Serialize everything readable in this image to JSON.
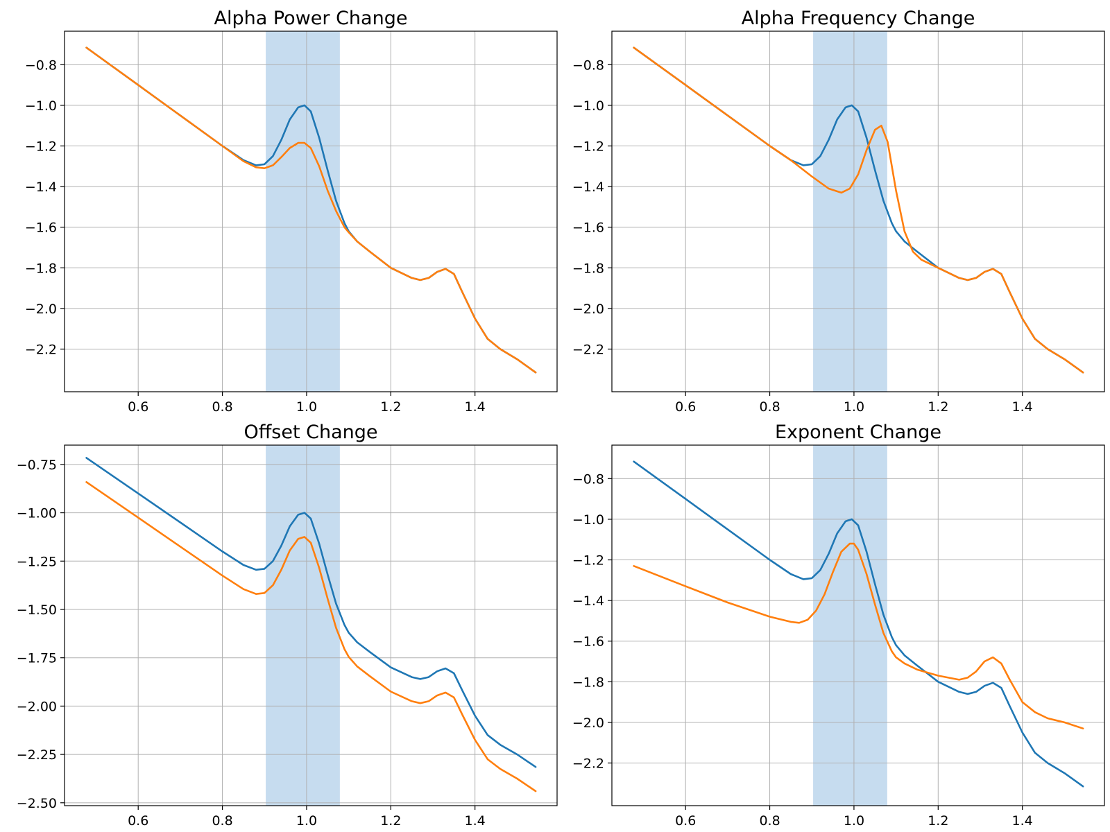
{
  "colors": {
    "series1": "#1f77b4",
    "series2": "#ff7f0e",
    "band": "#c6dcef",
    "grid": "#b0b0b0"
  },
  "chart_data": [
    {
      "type": "line",
      "title": "Alpha Power Change",
      "xlabel": "",
      "ylabel": "",
      "xlim": [
        0.425,
        1.595
      ],
      "ylim": [
        -2.41,
        -0.635
      ],
      "xticks": [
        0.6,
        0.8,
        1.0,
        1.2,
        1.4
      ],
      "xtick_labels": [
        "0.6",
        "0.8",
        "1.0",
        "1.2",
        "1.4"
      ],
      "yticks": [
        -0.8,
        -1.0,
        -1.2,
        -1.4,
        -1.6,
        -1.8,
        -2.0,
        -2.2
      ],
      "ytick_labels": [
        "−0.8",
        "−1.0",
        "−1.2",
        "−1.4",
        "−1.6",
        "−1.8",
        "−2.0",
        "−2.2"
      ],
      "shaded_band": [
        0.903,
        1.079
      ],
      "grid": true,
      "series": [
        {
          "x": [
            0.477,
            0.6,
            0.7,
            0.8,
            0.85,
            0.88,
            0.9,
            0.92,
            0.94,
            0.96,
            0.98,
            0.995,
            1.01,
            1.03,
            1.05,
            1.07,
            1.09,
            1.1,
            1.12,
            1.15,
            1.2,
            1.25,
            1.27,
            1.29,
            1.31,
            1.33,
            1.35,
            1.37,
            1.4,
            1.43,
            1.46,
            1.5,
            1.544
          ],
          "values": [
            -0.716,
            -0.9,
            -1.05,
            -1.2,
            -1.27,
            -1.295,
            -1.29,
            -1.25,
            -1.17,
            -1.07,
            -1.01,
            -1.0,
            -1.03,
            -1.16,
            -1.32,
            -1.47,
            -1.58,
            -1.62,
            -1.67,
            -1.72,
            -1.8,
            -1.85,
            -1.86,
            -1.85,
            -1.82,
            -1.805,
            -1.83,
            -1.92,
            -2.05,
            -2.15,
            -2.2,
            -2.25,
            -2.315
          ]
        },
        {
          "x": [
            0.477,
            0.6,
            0.7,
            0.8,
            0.85,
            0.88,
            0.9,
            0.92,
            0.94,
            0.96,
            0.98,
            0.995,
            1.01,
            1.03,
            1.05,
            1.07,
            1.09,
            1.1,
            1.12,
            1.15,
            1.2,
            1.25,
            1.27,
            1.29,
            1.31,
            1.33,
            1.35,
            1.37,
            1.4,
            1.43,
            1.46,
            1.5,
            1.544
          ],
          "values": [
            -0.716,
            -0.9,
            -1.05,
            -1.2,
            -1.275,
            -1.305,
            -1.31,
            -1.295,
            -1.255,
            -1.21,
            -1.185,
            -1.185,
            -1.21,
            -1.3,
            -1.42,
            -1.52,
            -1.6,
            -1.625,
            -1.67,
            -1.72,
            -1.8,
            -1.85,
            -1.86,
            -1.85,
            -1.82,
            -1.805,
            -1.83,
            -1.92,
            -2.05,
            -2.15,
            -2.2,
            -2.25,
            -2.315
          ]
        }
      ]
    },
    {
      "type": "line",
      "title": "Alpha Frequency Change",
      "xlabel": "",
      "ylabel": "",
      "xlim": [
        0.425,
        1.595
      ],
      "ylim": [
        -2.41,
        -0.635
      ],
      "xticks": [
        0.6,
        0.8,
        1.0,
        1.2,
        1.4
      ],
      "xtick_labels": [
        "0.6",
        "0.8",
        "1.0",
        "1.2",
        "1.4"
      ],
      "yticks": [
        -0.8,
        -1.0,
        -1.2,
        -1.4,
        -1.6,
        -1.8,
        -2.0,
        -2.2
      ],
      "ytick_labels": [
        "−0.8",
        "−1.0",
        "−1.2",
        "−1.4",
        "−1.6",
        "−1.8",
        "−2.0",
        "−2.2"
      ],
      "shaded_band": [
        0.903,
        1.079
      ],
      "grid": true,
      "series": [
        {
          "x": [
            0.477,
            0.6,
            0.7,
            0.8,
            0.85,
            0.88,
            0.9,
            0.92,
            0.94,
            0.96,
            0.98,
            0.995,
            1.01,
            1.03,
            1.05,
            1.07,
            1.09,
            1.1,
            1.12,
            1.15,
            1.2,
            1.25,
            1.27,
            1.29,
            1.31,
            1.33,
            1.35,
            1.37,
            1.4,
            1.43,
            1.46,
            1.5,
            1.544
          ],
          "values": [
            -0.716,
            -0.9,
            -1.05,
            -1.2,
            -1.27,
            -1.295,
            -1.29,
            -1.25,
            -1.17,
            -1.07,
            -1.01,
            -1.0,
            -1.03,
            -1.16,
            -1.32,
            -1.47,
            -1.58,
            -1.62,
            -1.67,
            -1.72,
            -1.8,
            -1.85,
            -1.86,
            -1.85,
            -1.82,
            -1.805,
            -1.83,
            -1.92,
            -2.05,
            -2.15,
            -2.2,
            -2.25,
            -2.315
          ]
        },
        {
          "x": [
            0.477,
            0.6,
            0.7,
            0.8,
            0.85,
            0.9,
            0.94,
            0.97,
            0.99,
            1.01,
            1.03,
            1.05,
            1.065,
            1.08,
            1.1,
            1.12,
            1.14,
            1.16,
            1.2,
            1.25,
            1.27,
            1.29,
            1.31,
            1.33,
            1.35,
            1.37,
            1.4,
            1.43,
            1.46,
            1.5,
            1.544
          ],
          "values": [
            -0.716,
            -0.9,
            -1.05,
            -1.2,
            -1.27,
            -1.35,
            -1.41,
            -1.43,
            -1.41,
            -1.34,
            -1.22,
            -1.12,
            -1.1,
            -1.18,
            -1.42,
            -1.62,
            -1.72,
            -1.76,
            -1.8,
            -1.85,
            -1.86,
            -1.85,
            -1.82,
            -1.805,
            -1.83,
            -1.92,
            -2.05,
            -2.15,
            -2.2,
            -2.25,
            -2.315
          ]
        }
      ]
    },
    {
      "type": "line",
      "title": "Offset Change",
      "xlabel": "",
      "ylabel": "",
      "xlim": [
        0.425,
        1.595
      ],
      "ylim": [
        -2.515,
        -0.65
      ],
      "xticks": [
        0.6,
        0.8,
        1.0,
        1.2,
        1.4
      ],
      "xtick_labels": [
        "0.6",
        "0.8",
        "1.0",
        "1.2",
        "1.4"
      ],
      "yticks": [
        -0.75,
        -1.0,
        -1.25,
        -1.5,
        -1.75,
        -2.0,
        -2.25,
        -2.5
      ],
      "ytick_labels": [
        "−0.75",
        "−1.00",
        "−1.25",
        "−1.50",
        "−1.75",
        "−2.00",
        "−2.25",
        "−2.50"
      ],
      "shaded_band": [
        0.903,
        1.079
      ],
      "grid": true,
      "series": [
        {
          "x": [
            0.477,
            0.6,
            0.7,
            0.8,
            0.85,
            0.88,
            0.9,
            0.92,
            0.94,
            0.96,
            0.98,
            0.995,
            1.01,
            1.03,
            1.05,
            1.07,
            1.09,
            1.1,
            1.12,
            1.15,
            1.2,
            1.25,
            1.27,
            1.29,
            1.31,
            1.33,
            1.35,
            1.37,
            1.4,
            1.43,
            1.46,
            1.5,
            1.544
          ],
          "values": [
            -0.716,
            -0.9,
            -1.05,
            -1.2,
            -1.27,
            -1.295,
            -1.29,
            -1.25,
            -1.17,
            -1.07,
            -1.01,
            -1.0,
            -1.03,
            -1.16,
            -1.32,
            -1.47,
            -1.58,
            -1.62,
            -1.67,
            -1.72,
            -1.8,
            -1.85,
            -1.86,
            -1.85,
            -1.82,
            -1.805,
            -1.83,
            -1.92,
            -2.05,
            -2.15,
            -2.2,
            -2.25,
            -2.315
          ]
        },
        {
          "x": [
            0.477,
            0.6,
            0.7,
            0.8,
            0.85,
            0.88,
            0.9,
            0.92,
            0.94,
            0.96,
            0.98,
            0.995,
            1.01,
            1.03,
            1.05,
            1.07,
            1.09,
            1.1,
            1.12,
            1.15,
            1.2,
            1.25,
            1.27,
            1.29,
            1.31,
            1.33,
            1.35,
            1.37,
            1.4,
            1.43,
            1.46,
            1.5,
            1.544
          ],
          "values": [
            -0.841,
            -1.025,
            -1.175,
            -1.325,
            -1.395,
            -1.42,
            -1.415,
            -1.375,
            -1.295,
            -1.195,
            -1.135,
            -1.125,
            -1.155,
            -1.285,
            -1.445,
            -1.595,
            -1.705,
            -1.745,
            -1.795,
            -1.845,
            -1.925,
            -1.975,
            -1.985,
            -1.975,
            -1.945,
            -1.93,
            -1.955,
            -2.045,
            -2.175,
            -2.275,
            -2.325,
            -2.375,
            -2.44
          ]
        }
      ]
    },
    {
      "type": "line",
      "title": "Exponent Change",
      "xlabel": "",
      "ylabel": "",
      "xlim": [
        0.425,
        1.595
      ],
      "ylim": [
        -2.41,
        -0.635
      ],
      "xticks": [
        0.6,
        0.8,
        1.0,
        1.2,
        1.4
      ],
      "xtick_labels": [
        "0.6",
        "0.8",
        "1.0",
        "1.2",
        "1.4"
      ],
      "yticks": [
        -0.8,
        -1.0,
        -1.2,
        -1.4,
        -1.6,
        -1.8,
        -2.0,
        -2.2
      ],
      "ytick_labels": [
        "−0.8",
        "−1.0",
        "−1.2",
        "−1.4",
        "−1.6",
        "−1.8",
        "−2.0",
        "−2.2"
      ],
      "shaded_band": [
        0.903,
        1.079
      ],
      "grid": true,
      "series": [
        {
          "x": [
            0.477,
            0.6,
            0.7,
            0.8,
            0.85,
            0.88,
            0.9,
            0.92,
            0.94,
            0.96,
            0.98,
            0.995,
            1.01,
            1.03,
            1.05,
            1.07,
            1.09,
            1.1,
            1.12,
            1.15,
            1.2,
            1.25,
            1.27,
            1.29,
            1.31,
            1.33,
            1.35,
            1.37,
            1.4,
            1.43,
            1.46,
            1.5,
            1.544
          ],
          "values": [
            -0.716,
            -0.9,
            -1.05,
            -1.2,
            -1.27,
            -1.295,
            -1.29,
            -1.25,
            -1.17,
            -1.07,
            -1.01,
            -1.0,
            -1.03,
            -1.16,
            -1.32,
            -1.47,
            -1.58,
            -1.62,
            -1.67,
            -1.72,
            -1.8,
            -1.85,
            -1.86,
            -1.85,
            -1.82,
            -1.805,
            -1.83,
            -1.92,
            -2.05,
            -2.15,
            -2.2,
            -2.25,
            -2.315
          ]
        },
        {
          "x": [
            0.477,
            0.6,
            0.7,
            0.8,
            0.85,
            0.87,
            0.89,
            0.91,
            0.93,
            0.95,
            0.97,
            0.99,
            1.0,
            1.01,
            1.03,
            1.05,
            1.07,
            1.09,
            1.1,
            1.12,
            1.15,
            1.2,
            1.25,
            1.27,
            1.29,
            1.31,
            1.33,
            1.35,
            1.37,
            1.4,
            1.43,
            1.46,
            1.5,
            1.544
          ],
          "values": [
            -1.23,
            -1.33,
            -1.41,
            -1.48,
            -1.505,
            -1.51,
            -1.495,
            -1.45,
            -1.37,
            -1.26,
            -1.16,
            -1.12,
            -1.12,
            -1.15,
            -1.27,
            -1.42,
            -1.56,
            -1.65,
            -1.68,
            -1.71,
            -1.74,
            -1.77,
            -1.79,
            -1.78,
            -1.75,
            -1.7,
            -1.68,
            -1.71,
            -1.79,
            -1.9,
            -1.95,
            -1.98,
            -2.0,
            -2.03
          ]
        }
      ]
    }
  ]
}
